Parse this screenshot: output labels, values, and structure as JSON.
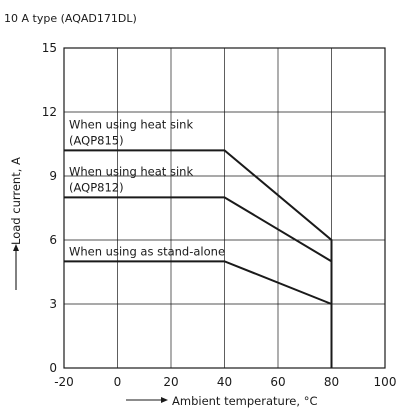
{
  "chart_data": {
    "type": "line",
    "title": "10 A type (AQAD171DL)",
    "xlabel": "Ambient temperature, °C",
    "ylabel": "Load current, A",
    "xlim": [
      -20,
      100
    ],
    "ylim": [
      0,
      15
    ],
    "xticks": [
      -20,
      0,
      20,
      40,
      60,
      80,
      100
    ],
    "yticks": [
      0,
      3,
      6,
      9,
      12,
      15
    ],
    "grid": true,
    "legend": "none",
    "series": [
      {
        "x": [
          -20,
          40,
          80,
          80
        ],
        "y": [
          10.2,
          10.2,
          6,
          0
        ]
      },
      {
        "x": [
          -20,
          40,
          80
        ],
        "y": [
          8,
          8,
          5
        ]
      },
      {
        "x": [
          -20,
          40,
          80
        ],
        "y": [
          5,
          5,
          3
        ]
      }
    ],
    "annotations": [
      {
        "lines": [
          "When using heat sink",
          "(AQP815)"
        ]
      },
      {
        "lines": [
          "When using heat sink",
          "(AQP812)"
        ]
      },
      {
        "lines": [
          "When using as stand-alone"
        ]
      }
    ]
  }
}
